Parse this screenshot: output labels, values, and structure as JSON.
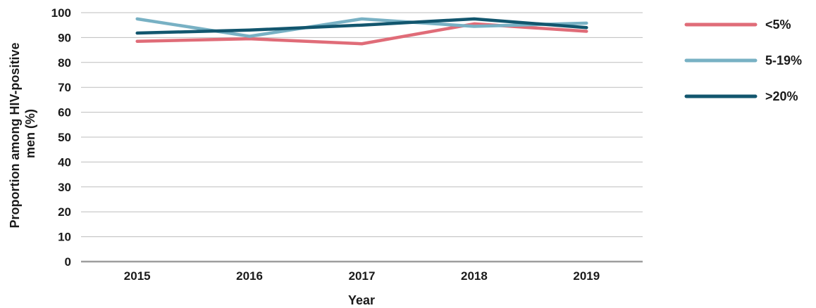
{
  "chart_data": {
    "type": "line",
    "title": "",
    "xlabel": "Year",
    "ylabel_lines": [
      "Proportion among HIV-positive",
      "men (%)"
    ],
    "categories": [
      "2015",
      "2016",
      "2017",
      "2018",
      "2019"
    ],
    "ylim": [
      0,
      100
    ],
    "yticks": [
      0,
      10,
      20,
      30,
      40,
      50,
      60,
      70,
      80,
      90,
      100
    ],
    "grid": true,
    "legend_position": "right",
    "series": [
      {
        "name": "<5%",
        "color": "#e06c78",
        "values": [
          88.5,
          89.5,
          87.5,
          95.5,
          92.5
        ]
      },
      {
        "name": "5-19%",
        "color": "#78b1c4",
        "values": [
          97.5,
          90.5,
          97.5,
          94.5,
          95.8
        ]
      },
      {
        "name": ">20%",
        "color": "#12566e",
        "values": [
          91.8,
          93,
          95,
          97.5,
          94
        ]
      }
    ]
  }
}
